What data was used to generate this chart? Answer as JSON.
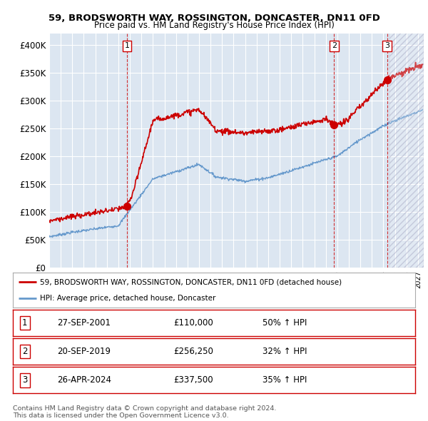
{
  "title1": "59, BRODSWORTH WAY, ROSSINGTON, DONCASTER, DN11 0FD",
  "title2": "Price paid vs. HM Land Registry's House Price Index (HPI)",
  "ylim": [
    0,
    420000
  ],
  "yticks": [
    0,
    50000,
    100000,
    150000,
    200000,
    250000,
    300000,
    350000,
    400000
  ],
  "ytick_labels": [
    "£0",
    "£50K",
    "£100K",
    "£150K",
    "£200K",
    "£250K",
    "£300K",
    "£350K",
    "£400K"
  ],
  "xlim_start": 1995.0,
  "xlim_end": 2027.5,
  "bg_color": "#dce6f1",
  "grid_color": "white",
  "red_color": "#cc0000",
  "blue_color": "#6699cc",
  "sale1_x": 2001.74,
  "sale1_y": 110000,
  "sale2_x": 2019.72,
  "sale2_y": 256250,
  "sale3_x": 2024.32,
  "sale3_y": 337500,
  "hatch_start": 2024.5,
  "legend_line1": "59, BRODSWORTH WAY, ROSSINGTON, DONCASTER, DN11 0FD (detached house)",
  "legend_line2": "HPI: Average price, detached house, Doncaster",
  "table_rows": [
    [
      "1",
      "27-SEP-2001",
      "£110,000",
      "50% ↑ HPI"
    ],
    [
      "2",
      "20-SEP-2019",
      "£256,250",
      "32% ↑ HPI"
    ],
    [
      "3",
      "26-APR-2024",
      "£337,500",
      "35% ↑ HPI"
    ]
  ],
  "footer1": "Contains HM Land Registry data © Crown copyright and database right 2024.",
  "footer2": "This data is licensed under the Open Government Licence v3.0."
}
